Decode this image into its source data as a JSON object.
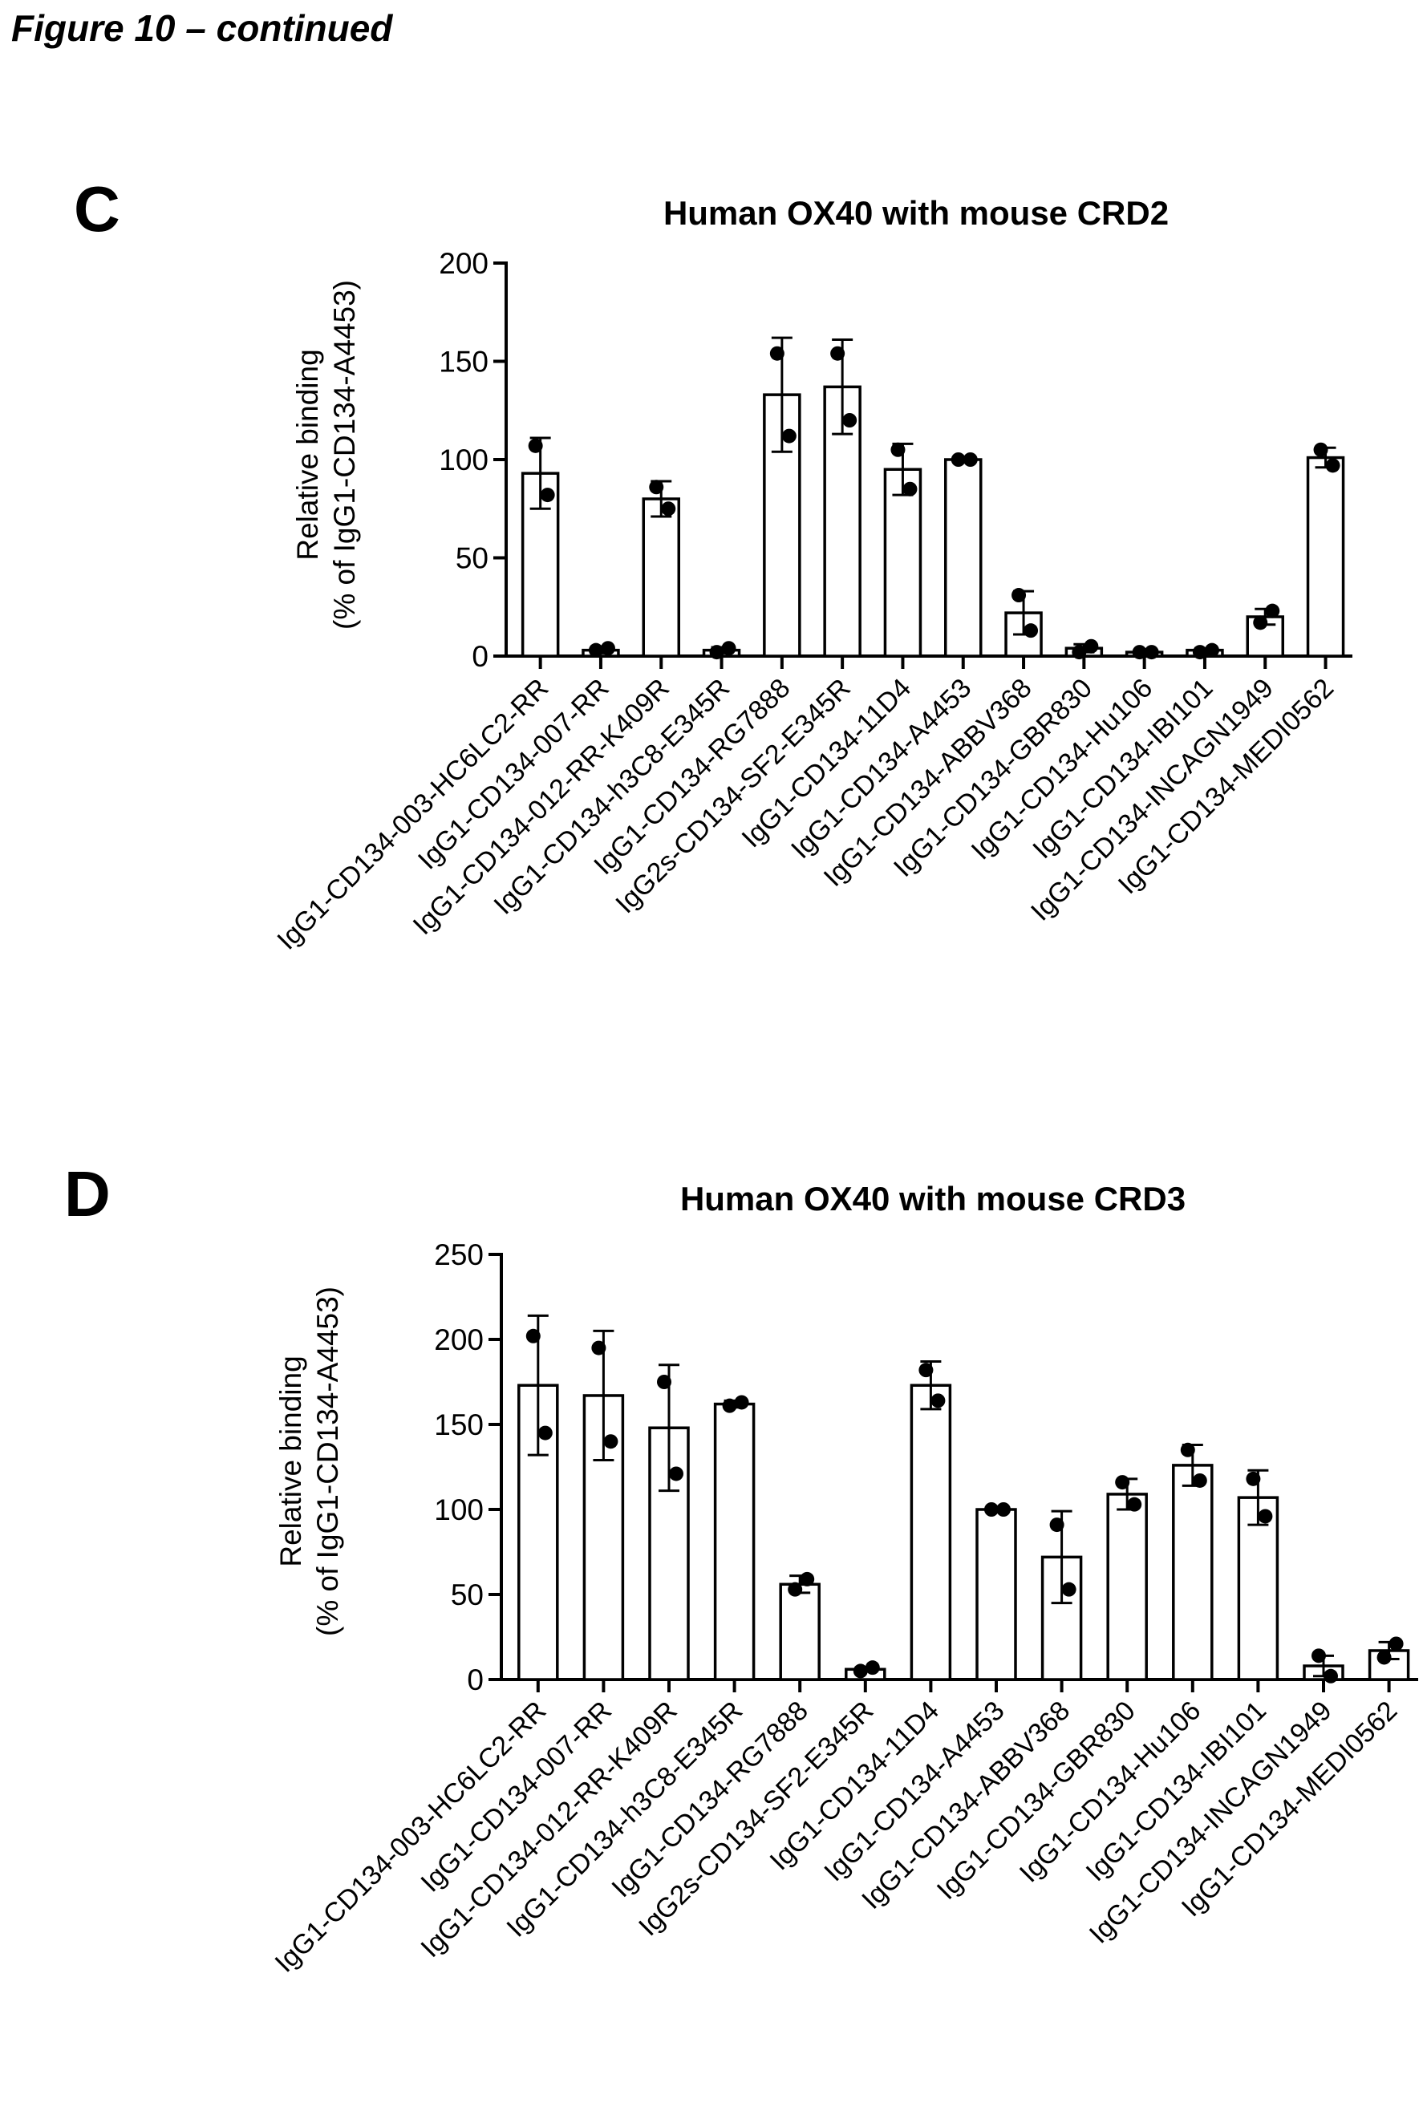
{
  "page_title": "Figure 10 – continued",
  "chart_data": [
    {
      "type": "bar",
      "panel": "C",
      "title": "Human OX40 with mouse CRD2",
      "ylabel_line1": "Relative binding",
      "ylabel_line2": "(% of IgG1-CD134-A4453)",
      "ylim": [
        0,
        200
      ],
      "yticks": [
        0,
        50,
        100,
        150,
        200
      ],
      "categories": [
        "IgG1-CD134-003-HC6LC2-RR",
        "IgG1-CD134-007-RR",
        "IgG1-CD134-012-RR-K409R",
        "IgG1-CD134-h3C8-E345R",
        "IgG1-CD134-RG7888",
        "IgG2s-CD134-SF2-E345R",
        "IgG1-CD134-11D4",
        "IgG1-CD134-A4453",
        "IgG1-CD134-ABBV368",
        "IgG1-CD134-GBR830",
        "IgG1-CD134-Hu106",
        "IgG1-CD134-IBI101",
        "IgG1-CD134-INCAGN1949",
        "IgG1-CD134-MEDI0562"
      ],
      "values": [
        93,
        3,
        80,
        3,
        133,
        137,
        95,
        100,
        22,
        4,
        2,
        3,
        20,
        101
      ],
      "error": [
        18,
        1.5,
        9,
        1.5,
        29,
        24,
        13,
        0,
        11,
        2,
        1,
        1,
        4,
        5
      ],
      "points": [
        [
          107,
          82
        ],
        [
          3,
          4
        ],
        [
          86,
          75
        ],
        [
          2,
          4
        ],
        [
          154,
          112
        ],
        [
          154,
          120
        ],
        [
          105,
          85
        ],
        [
          100,
          100
        ],
        [
          31,
          13
        ],
        [
          2,
          5
        ],
        [
          2,
          2
        ],
        [
          2,
          3
        ],
        [
          17,
          23
        ],
        [
          105,
          97
        ]
      ],
      "grid": false,
      "legend": "none"
    },
    {
      "type": "bar",
      "panel": "D",
      "title": "Human OX40 with mouse CRD3",
      "ylabel_line1": "Relative binding",
      "ylabel_line2": "(% of IgG1-CD134-A4453)",
      "ylim": [
        0,
        250
      ],
      "yticks": [
        0,
        50,
        100,
        150,
        200,
        250
      ],
      "categories": [
        "IgG1-CD134-003-HC6LC2-RR",
        "IgG1-CD134-007-RR",
        "IgG1-CD134-012-RR-K409R",
        "IgG1-CD134-h3C8-E345R",
        "IgG1-CD134-RG7888",
        "IgG2s-CD134-SF2-E345R",
        "IgG1-CD134-11D4",
        "IgG1-CD134-A4453",
        "IgG1-CD134-ABBV368",
        "IgG1-CD134-GBR830",
        "IgG1-CD134-Hu106",
        "IgG1-CD134-IBI101",
        "IgG1-CD134-INCAGN1949",
        "IgG1-CD134-MEDI0562"
      ],
      "values": [
        173,
        167,
        148,
        162,
        56,
        6,
        173,
        100,
        72,
        109,
        126,
        107,
        8,
        17
      ],
      "error": [
        41,
        38,
        37,
        2,
        5,
        1,
        14,
        0,
        27,
        9,
        12,
        16,
        6,
        5
      ],
      "points": [
        [
          202,
          145
        ],
        [
          195,
          140
        ],
        [
          175,
          121
        ],
        [
          161,
          163
        ],
        [
          53,
          59
        ],
        [
          5,
          7
        ],
        [
          182,
          164
        ],
        [
          100,
          100
        ],
        [
          91,
          53
        ],
        [
          116,
          103
        ],
        [
          135,
          117
        ],
        [
          118,
          96
        ],
        [
          14,
          2
        ],
        [
          13,
          21
        ]
      ],
      "grid": false,
      "legend": "none"
    }
  ]
}
